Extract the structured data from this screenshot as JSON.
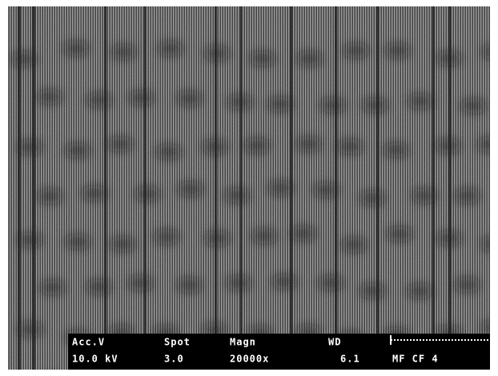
{
  "databar": {
    "labels": [
      "Acc.V",
      "Spot",
      "Magn",
      "WD"
    ],
    "values": [
      "10.0 kV",
      "3.0",
      "20000x",
      "6.1",
      "MF CF 4"
    ]
  }
}
